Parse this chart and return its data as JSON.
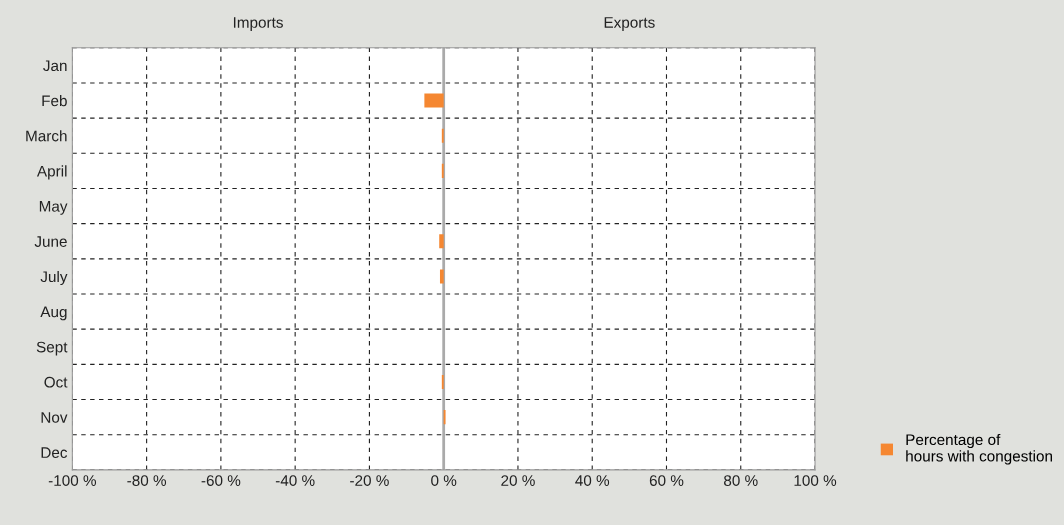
{
  "chart_data": {
    "type": "bar",
    "orientation": "horizontal",
    "categories": [
      "Jan",
      "Feb",
      "March",
      "April",
      "May",
      "June",
      "July",
      "Aug",
      "Sept",
      "Oct",
      "Nov",
      "Dec"
    ],
    "series": [
      {
        "name": "Percentage of\nhours with congestion",
        "color": "#f58731",
        "values": [
          0,
          -5.2,
          -0.5,
          -0.5,
          0,
          -1.2,
          -1,
          0,
          0,
          -0.5,
          0.5,
          0
        ]
      }
    ],
    "xlim": [
      -100,
      100
    ],
    "xticks": [
      {
        "value": -100,
        "label": "-100 %"
      },
      {
        "value": -80,
        "label": "-80 %"
      },
      {
        "value": -60,
        "label": "-60 %"
      },
      {
        "value": -40,
        "label": "-40 %"
      },
      {
        "value": -20,
        "label": "-20 %"
      },
      {
        "value": 0,
        "label": "0 %"
      },
      {
        "value": 20,
        "label": "20 %"
      },
      {
        "value": 40,
        "label": "40 %"
      },
      {
        "value": 60,
        "label": "60 %"
      },
      {
        "value": 80,
        "label": "80 %"
      },
      {
        "value": 100,
        "label": "100 %"
      }
    ],
    "annotations": [
      "Imports",
      "Exports"
    ],
    "ref_lines": [
      {
        "axis": "x",
        "value": 0,
        "color": "#aaaaaa"
      }
    ],
    "grid": true,
    "legend": "bottom right"
  }
}
